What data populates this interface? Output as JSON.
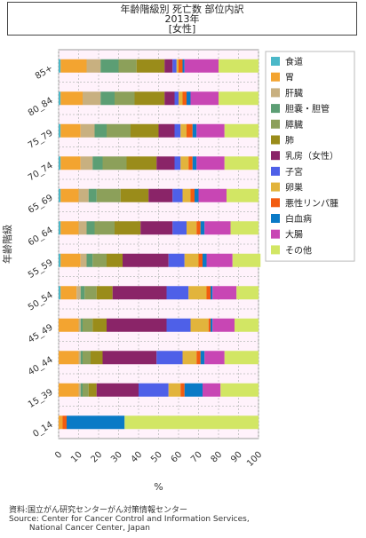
{
  "chart_data": {
    "type": "bar",
    "stacked": true,
    "orientation": "horizontal",
    "title": [
      "年齢階級別 死亡数 部位内訳",
      "2013年",
      "[女性]"
    ],
    "xlabel": "%",
    "ylabel": "年齢階級",
    "xlim": [
      0,
      100
    ],
    "xticks": [
      0,
      10,
      20,
      30,
      40,
      50,
      60,
      70,
      80,
      90,
      100
    ],
    "grid": true,
    "legend_position": "right",
    "categories": [
      "85+",
      "80_84",
      "75_79",
      "70_74",
      "65_69",
      "60_64",
      "55_59",
      "50_54",
      "45_49",
      "40_44",
      "15_39",
      "0_14"
    ],
    "series": [
      {
        "name": "食道",
        "color": "#4bb8c8",
        "values": [
          1,
          1,
          1,
          1,
          1,
          1,
          1,
          1,
          0,
          0,
          0,
          0
        ]
      },
      {
        "name": "胃",
        "color": "#f3a430",
        "values": [
          13,
          11,
          10,
          10,
          9,
          9,
          10,
          8,
          10,
          10,
          10,
          2
        ]
      },
      {
        "name": "肝臓",
        "color": "#c8b080",
        "values": [
          7,
          9,
          7,
          6,
          5,
          4,
          3,
          2,
          1,
          1,
          1,
          0
        ]
      },
      {
        "name": "胆嚢・胆管",
        "color": "#5c9e74",
        "values": [
          9,
          7,
          6,
          5,
          4,
          4,
          3,
          2,
          1,
          1,
          1,
          0
        ]
      },
      {
        "name": "膵臓",
        "color": "#8ca05a",
        "values": [
          9,
          10,
          12,
          12,
          12,
          10,
          7,
          6,
          5,
          4,
          3,
          0
        ]
      },
      {
        "name": "肺",
        "color": "#9a8c1a",
        "values": [
          14,
          15,
          14,
          15,
          14,
          13,
          8,
          8,
          7,
          6,
          4,
          0
        ]
      },
      {
        "name": "乳房（女性）",
        "color": "#8a2468",
        "values": [
          4,
          5,
          8,
          9,
          12,
          16,
          23,
          27,
          30,
          27,
          21,
          0
        ]
      },
      {
        "name": "子宮",
        "color": "#4e60e8",
        "values": [
          2,
          2,
          3,
          3,
          5,
          7,
          8,
          11,
          12,
          13,
          15,
          0
        ]
      },
      {
        "name": "卵巣",
        "color": "#e2b43c",
        "values": [
          1,
          2,
          3,
          4,
          4,
          5,
          7,
          9,
          9,
          7,
          6,
          0
        ]
      },
      {
        "name": "悪性リンパ腫",
        "color": "#f25c10",
        "values": [
          2,
          2,
          3,
          2,
          2,
          2,
          2,
          2,
          1,
          2,
          2,
          2
        ]
      },
      {
        "name": "白血病",
        "color": "#0a7ac6",
        "values": [
          1,
          2,
          2,
          2,
          2,
          2,
          2,
          1,
          1,
          2,
          9,
          29
        ]
      },
      {
        "name": "大腸",
        "color": "#c846b4",
        "values": [
          17,
          14,
          14,
          14,
          14,
          13,
          13,
          12,
          11,
          10,
          9,
          0
        ]
      },
      {
        "name": "その他",
        "color": "#d2e664",
        "values": [
          20,
          20,
          17,
          17,
          16,
          14,
          14,
          11,
          12,
          17,
          19,
          67
        ]
      }
    ],
    "source": [
      "資料:国立がん研究センターがん対策情報センター",
      "Source: Center for Cancer Control and Information Services,",
      "        National Cancer Center, Japan"
    ]
  }
}
